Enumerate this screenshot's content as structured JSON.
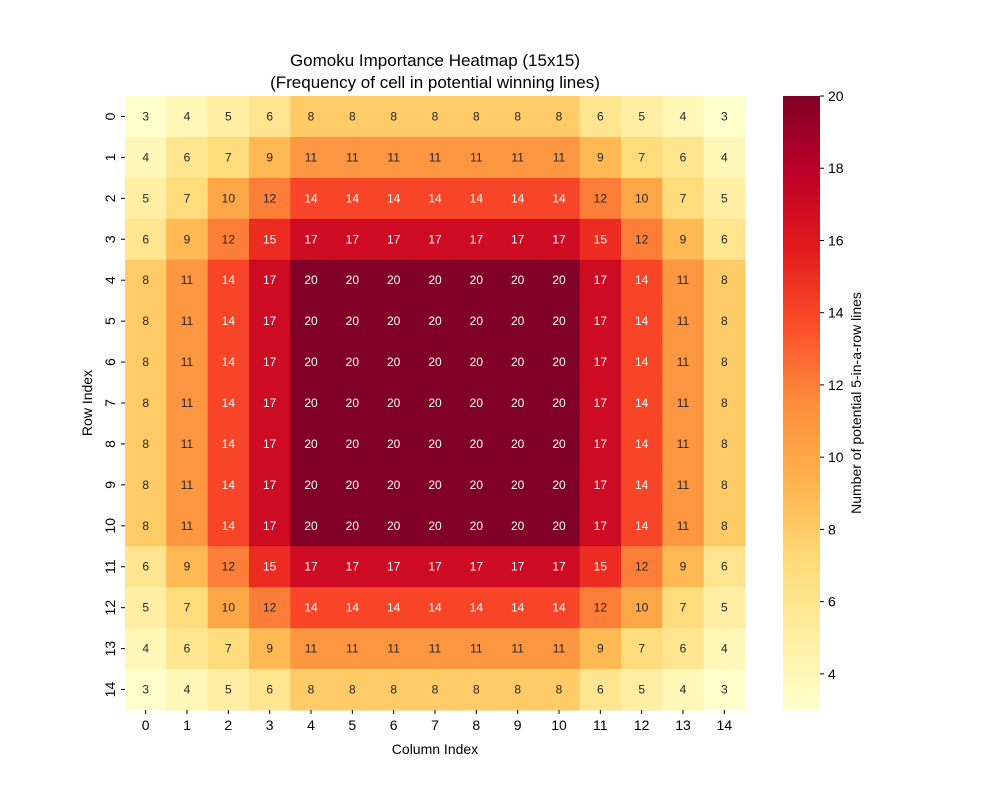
{
  "chart_data": {
    "type": "heatmap",
    "title": "Gomoku Importance Heatmap (15x15)",
    "subtitle": "(Frequency of cell in potential winning lines)",
    "xlabel": "Column Index",
    "ylabel": "Row Index",
    "colorbar_label": "Number of potential 5-in-a-row lines",
    "colormap": "YlOrRd",
    "colormap_stops": [
      "#ffffcc",
      "#ffeda0",
      "#fed976",
      "#feb24c",
      "#fd8d3c",
      "#fc4e2a",
      "#e31a1c",
      "#bd0026",
      "#800026"
    ],
    "vmin": 3,
    "vmax": 20,
    "colorbar_ticks": [
      4,
      6,
      8,
      10,
      12,
      14,
      16,
      18,
      20
    ],
    "x_tick_labels": [
      "0",
      "1",
      "2",
      "3",
      "4",
      "5",
      "6",
      "7",
      "8",
      "9",
      "10",
      "11",
      "12",
      "13",
      "14"
    ],
    "y_tick_labels": [
      "0",
      "1",
      "2",
      "3",
      "4",
      "5",
      "6",
      "7",
      "8",
      "9",
      "10",
      "11",
      "12",
      "13",
      "14"
    ],
    "annotated": true,
    "values": [
      [
        3,
        4,
        5,
        6,
        8,
        8,
        8,
        8,
        8,
        8,
        8,
        6,
        5,
        4,
        3
      ],
      [
        4,
        6,
        7,
        9,
        11,
        11,
        11,
        11,
        11,
        11,
        11,
        9,
        7,
        6,
        4
      ],
      [
        5,
        7,
        10,
        12,
        14,
        14,
        14,
        14,
        14,
        14,
        14,
        12,
        10,
        7,
        5
      ],
      [
        6,
        9,
        12,
        15,
        17,
        17,
        17,
        17,
        17,
        17,
        17,
        15,
        12,
        9,
        6
      ],
      [
        8,
        11,
        14,
        17,
        20,
        20,
        20,
        20,
        20,
        20,
        20,
        17,
        14,
        11,
        8
      ],
      [
        8,
        11,
        14,
        17,
        20,
        20,
        20,
        20,
        20,
        20,
        20,
        17,
        14,
        11,
        8
      ],
      [
        8,
        11,
        14,
        17,
        20,
        20,
        20,
        20,
        20,
        20,
        20,
        17,
        14,
        11,
        8
      ],
      [
        8,
        11,
        14,
        17,
        20,
        20,
        20,
        20,
        20,
        20,
        20,
        17,
        14,
        11,
        8
      ],
      [
        8,
        11,
        14,
        17,
        20,
        20,
        20,
        20,
        20,
        20,
        20,
        17,
        14,
        11,
        8
      ],
      [
        8,
        11,
        14,
        17,
        20,
        20,
        20,
        20,
        20,
        20,
        20,
        17,
        14,
        11,
        8
      ],
      [
        8,
        11,
        14,
        17,
        20,
        20,
        20,
        20,
        20,
        20,
        20,
        17,
        14,
        11,
        8
      ],
      [
        6,
        9,
        12,
        15,
        17,
        17,
        17,
        17,
        17,
        17,
        17,
        15,
        12,
        9,
        6
      ],
      [
        5,
        7,
        10,
        12,
        14,
        14,
        14,
        14,
        14,
        14,
        14,
        12,
        10,
        7,
        5
      ],
      [
        4,
        6,
        7,
        9,
        11,
        11,
        11,
        11,
        11,
        11,
        11,
        9,
        7,
        6,
        4
      ],
      [
        3,
        4,
        5,
        6,
        8,
        8,
        8,
        8,
        8,
        8,
        8,
        6,
        5,
        4,
        3
      ]
    ]
  }
}
